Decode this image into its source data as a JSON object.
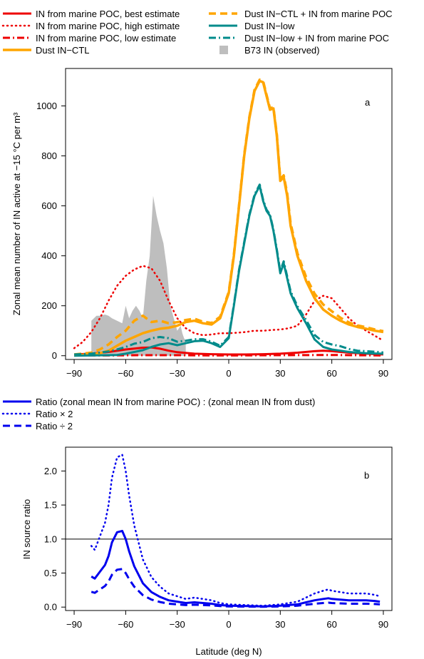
{
  "colors": {
    "red": "#ee0000",
    "orange": "#ffa500",
    "teal": "#008b8b",
    "grey": "#bebebe",
    "blue": "#0000ee"
  },
  "chart_data": [
    {
      "type": "line",
      "panel_label": "a",
      "xlabel": "",
      "ylabel": "Zonal mean number of IN active at −15 °C per m³",
      "xlim": [
        -95,
        95
      ],
      "ylim": [
        -15,
        1150
      ],
      "xticks": [
        -90,
        -60,
        -30,
        0,
        30,
        60,
        90
      ],
      "yticks": [
        0,
        200,
        400,
        600,
        800,
        1000
      ],
      "xtick_labels": [
        "−90",
        "−60",
        "−30",
        "0",
        "30",
        "60",
        "90"
      ],
      "ytick_labels": [
        "0",
        "200",
        "400",
        "600",
        "800",
        "1000"
      ],
      "legend_position": "top (above plot), two columns",
      "grid": false,
      "series": [
        {
          "name": "IN from marine POC, best estimate",
          "color": "#ee0000",
          "style": "solid",
          "width": 3,
          "x": [
            -90,
            -80,
            -70,
            -60,
            -50,
            -45,
            -40,
            -35,
            -30,
            -20,
            -10,
            0,
            10,
            20,
            30,
            40,
            50,
            55,
            60,
            70,
            80,
            90
          ],
          "y": [
            5,
            8,
            15,
            25,
            32,
            33,
            28,
            20,
            14,
            8,
            6,
            5,
            5,
            6,
            8,
            12,
            18,
            20,
            18,
            12,
            8,
            5
          ]
        },
        {
          "name": "IN from marine POC, high estimate",
          "color": "#ee0000",
          "style": "dotted",
          "width": 2.5,
          "x": [
            -90,
            -85,
            -80,
            -75,
            -70,
            -65,
            -60,
            -55,
            -50,
            -45,
            -40,
            -35,
            -30,
            -25,
            -20,
            -15,
            -10,
            -5,
            0,
            5,
            10,
            15,
            20,
            25,
            30,
            35,
            40,
            45,
            50,
            55,
            60,
            65,
            70,
            75,
            80,
            85,
            90
          ],
          "y": [
            30,
            55,
            95,
            150,
            220,
            280,
            320,
            345,
            360,
            350,
            300,
            220,
            150,
            110,
            90,
            82,
            85,
            90,
            90,
            92,
            95,
            100,
            100,
            103,
            105,
            110,
            120,
            165,
            220,
            240,
            230,
            190,
            150,
            120,
            100,
            80,
            60
          ]
        },
        {
          "name": "IN from marine POC, low estimate",
          "color": "#ee0000",
          "style": "dashdot",
          "width": 3,
          "x": [
            -90,
            -70,
            -50,
            -40,
            -30,
            -10,
            0,
            30,
            60,
            90
          ],
          "y": [
            1,
            1,
            2,
            2,
            2,
            1,
            1,
            2,
            3,
            1
          ]
        },
        {
          "name": "Dust IN−CTL",
          "color": "#ffa500",
          "style": "solid",
          "width": 3.5,
          "x": [
            -90,
            -80,
            -75,
            -70,
            -65,
            -60,
            -55,
            -50,
            -45,
            -40,
            -35,
            -30,
            -25,
            -20,
            -15,
            -10,
            -5,
            0,
            3,
            6,
            9,
            12,
            15,
            18,
            20,
            22,
            24,
            26,
            28,
            30,
            32,
            34,
            36,
            40,
            45,
            50,
            55,
            60,
            65,
            70,
            75,
            80,
            85,
            90
          ],
          "y": [
            2,
            5,
            10,
            20,
            40,
            60,
            75,
            90,
            100,
            108,
            112,
            120,
            135,
            140,
            130,
            125,
            150,
            250,
            400,
            600,
            800,
            950,
            1060,
            1100,
            1095,
            1040,
            985,
            990,
            880,
            700,
            715,
            640,
            520,
            400,
            300,
            230,
            185,
            160,
            140,
            125,
            115,
            108,
            100,
            95
          ]
        },
        {
          "name": "Dust IN−low",
          "color": "#008b8b",
          "style": "solid",
          "width": 3,
          "x": [
            -90,
            -80,
            -70,
            -65,
            -60,
            -55,
            -50,
            -45,
            -40,
            -35,
            -30,
            -25,
            -20,
            -15,
            -10,
            -5,
            0,
            3,
            6,
            9,
            12,
            15,
            18,
            20,
            22,
            24,
            26,
            28,
            30,
            32,
            34,
            36,
            40,
            45,
            50,
            55,
            60,
            65,
            70,
            75,
            80,
            85,
            90
          ],
          "y": [
            0,
            1,
            2,
            3,
            8,
            15,
            22,
            35,
            45,
            50,
            42,
            50,
            58,
            60,
            50,
            35,
            70,
            200,
            340,
            450,
            560,
            640,
            680,
            620,
            580,
            560,
            500,
            420,
            330,
            370,
            310,
            250,
            190,
            130,
            65,
            35,
            25,
            20,
            15,
            12,
            10,
            9,
            8
          ]
        },
        {
          "name": "Dust IN−CTL + IN from marine POC",
          "color": "#ffa500",
          "style": "dashed",
          "width": 3.5,
          "x": [
            -90,
            -80,
            -75,
            -70,
            -65,
            -60,
            -55,
            -50,
            -45,
            -40,
            -35,
            -30,
            -25,
            -20,
            -15,
            -10,
            -5,
            0,
            3,
            6,
            9,
            12,
            15,
            18,
            20,
            22,
            24,
            26,
            28,
            30,
            32,
            34,
            36,
            40,
            45,
            50,
            55,
            60,
            65,
            70,
            75,
            80,
            85,
            90
          ],
          "y": [
            5,
            12,
            25,
            45,
            75,
            100,
            140,
            160,
            135,
            140,
            130,
            134,
            143,
            148,
            136,
            131,
            156,
            255,
            405,
            605,
            805,
            955,
            1065,
            1105,
            1100,
            1045,
            990,
            995,
            885,
            707,
            722,
            650,
            530,
            410,
            315,
            248,
            205,
            178,
            152,
            133,
            121,
            114,
            105,
            98
          ]
        },
        {
          "name": "Dust IN−low + IN from marine POC",
          "color": "#008b8b",
          "style": "dashdot",
          "width": 3,
          "x": [
            -90,
            -80,
            -70,
            -65,
            -60,
            -55,
            -50,
            -45,
            -40,
            -35,
            -30,
            -25,
            -20,
            -15,
            -10,
            -5,
            0,
            3,
            6,
            9,
            12,
            15,
            18,
            20,
            22,
            24,
            26,
            28,
            30,
            32,
            34,
            36,
            40,
            45,
            50,
            55,
            60,
            65,
            70,
            75,
            80,
            85,
            90
          ],
          "y": [
            5,
            8,
            17,
            25,
            35,
            48,
            55,
            70,
            75,
            70,
            56,
            60,
            66,
            66,
            56,
            40,
            75,
            205,
            345,
            455,
            565,
            645,
            685,
            625,
            585,
            565,
            505,
            425,
            338,
            378,
            318,
            258,
            198,
            143,
            83,
            55,
            45,
            38,
            27,
            20,
            18,
            16,
            13
          ]
        }
      ],
      "area_series": {
        "name": "B73 IN (observed)",
        "color": "#bebebe",
        "x": [
          -80,
          -80,
          -77,
          -75,
          -72,
          -70,
          -68,
          -65,
          -62,
          -60,
          -58,
          -56,
          -54,
          -52,
          -50,
          -48,
          -46,
          -44,
          -42,
          -40,
          -38,
          -36,
          -34,
          -32,
          -30,
          -28,
          -27,
          -26,
          -25,
          -25
        ],
        "y": [
          0,
          140,
          160,
          160,
          165,
          160,
          150,
          140,
          130,
          200,
          150,
          180,
          200,
          180,
          150,
          300,
          400,
          640,
          560,
          500,
          450,
          350,
          200,
          150,
          100,
          120,
          90,
          70,
          60,
          0
        ]
      }
    },
    {
      "type": "line",
      "panel_label": "b",
      "xlabel": "Latitude (deg N)",
      "ylabel": "IN source ratio",
      "xlim": [
        -95,
        95
      ],
      "ylim": [
        -0.05,
        2.35
      ],
      "xticks": [
        -90,
        -60,
        -30,
        0,
        30,
        60,
        90
      ],
      "yticks": [
        0.0,
        0.5,
        1.0,
        1.5,
        2.0
      ],
      "xtick_labels": [
        "−90",
        "−60",
        "−30",
        "0",
        "30",
        "60",
        "90"
      ],
      "ytick_labels": [
        "0.0",
        "0.5",
        "1.0",
        "1.5",
        "2.0"
      ],
      "reference_line": 1.0,
      "legend_position": "top (above plot)",
      "grid": false,
      "series": [
        {
          "name": "Ratio (zonal mean IN from marine POC) : (zonal mean IN from dust)",
          "color": "#0000ee",
          "style": "solid",
          "width": 3,
          "x": [
            -80,
            -78,
            -75,
            -72,
            -70,
            -68,
            -65,
            -62,
            -60,
            -58,
            -55,
            -52,
            -50,
            -45,
            -40,
            -35,
            -30,
            -25,
            -20,
            -15,
            -10,
            -5,
            0,
            10,
            20,
            30,
            40,
            45,
            50,
            55,
            58,
            60,
            65,
            70,
            75,
            80,
            85,
            88
          ],
          "y": [
            0.45,
            0.42,
            0.52,
            0.62,
            0.75,
            0.95,
            1.1,
            1.12,
            1.0,
            0.82,
            0.6,
            0.45,
            0.35,
            0.22,
            0.15,
            0.1,
            0.08,
            0.06,
            0.07,
            0.06,
            0.05,
            0.03,
            0.02,
            0.015,
            0.01,
            0.02,
            0.04,
            0.07,
            0.1,
            0.12,
            0.13,
            0.12,
            0.11,
            0.1,
            0.1,
            0.1,
            0.09,
            0.08
          ]
        },
        {
          "name": "Ratio × 2",
          "color": "#0000ee",
          "style": "dotted",
          "width": 2.5,
          "x": [
            -80,
            -78,
            -75,
            -72,
            -70,
            -68,
            -65,
            -62,
            -60,
            -58,
            -55,
            -52,
            -50,
            -45,
            -40,
            -35,
            -30,
            -25,
            -20,
            -15,
            -10,
            -5,
            0,
            10,
            20,
            30,
            40,
            45,
            50,
            55,
            58,
            60,
            65,
            70,
            75,
            80,
            85,
            88
          ],
          "y": [
            0.9,
            0.84,
            1.04,
            1.24,
            1.5,
            1.9,
            2.2,
            2.24,
            2.0,
            1.64,
            1.2,
            0.9,
            0.7,
            0.44,
            0.3,
            0.2,
            0.16,
            0.12,
            0.14,
            0.12,
            0.1,
            0.06,
            0.04,
            0.03,
            0.02,
            0.04,
            0.08,
            0.14,
            0.2,
            0.24,
            0.26,
            0.24,
            0.22,
            0.2,
            0.2,
            0.2,
            0.18,
            0.16
          ]
        },
        {
          "name": "Ratio ÷ 2",
          "color": "#0000ee",
          "style": "dashed",
          "width": 3,
          "x": [
            -80,
            -78,
            -75,
            -72,
            -70,
            -68,
            -65,
            -62,
            -60,
            -58,
            -55,
            -52,
            -50,
            -45,
            -40,
            -35,
            -30,
            -25,
            -20,
            -15,
            -10,
            -5,
            0,
            10,
            20,
            30,
            40,
            45,
            50,
            55,
            58,
            60,
            65,
            70,
            75,
            80,
            85,
            88
          ],
          "y": [
            0.225,
            0.21,
            0.26,
            0.31,
            0.375,
            0.475,
            0.55,
            0.56,
            0.5,
            0.41,
            0.3,
            0.225,
            0.175,
            0.11,
            0.075,
            0.05,
            0.04,
            0.03,
            0.035,
            0.03,
            0.025,
            0.015,
            0.01,
            0.008,
            0.005,
            0.01,
            0.02,
            0.035,
            0.05,
            0.06,
            0.065,
            0.06,
            0.055,
            0.05,
            0.05,
            0.05,
            0.045,
            0.04
          ]
        }
      ]
    }
  ]
}
